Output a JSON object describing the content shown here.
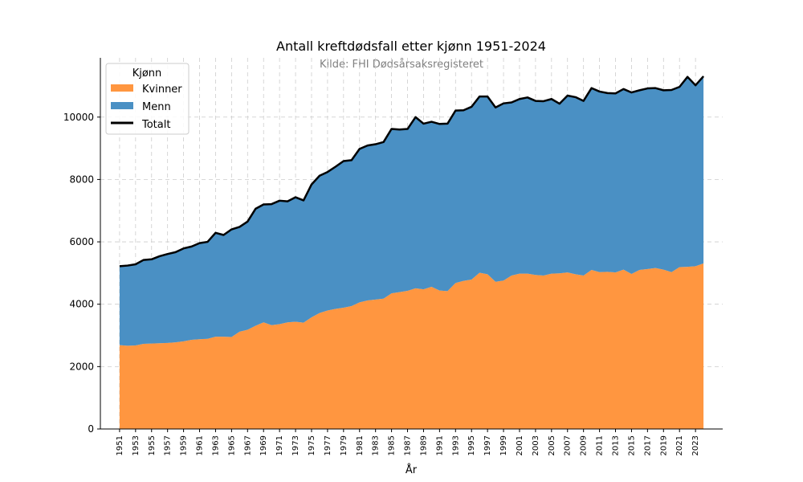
{
  "chart_data": {
    "type": "area",
    "title": "Antall kreftdødsfall etter kjønn 1951-2024",
    "subtitle": "Kilde: FHI Dødsårsaksregisteret",
    "xlabel": "År",
    "ylabel": "",
    "xlim": [
      1948.6,
      2026.4
    ],
    "ylim": [
      0,
      11900
    ],
    "yticks": [
      0,
      2000,
      4000,
      6000,
      8000,
      10000
    ],
    "xticks": [
      1951,
      1953,
      1955,
      1957,
      1959,
      1961,
      1963,
      1965,
      1967,
      1969,
      1971,
      1973,
      1975,
      1977,
      1979,
      1981,
      1983,
      1985,
      1987,
      1989,
      1991,
      1993,
      1995,
      1997,
      1999,
      2001,
      2003,
      2005,
      2007,
      2009,
      2011,
      2013,
      2015,
      2017,
      2019,
      2021,
      2023
    ],
    "grid": true,
    "legend": {
      "title": "Kjønn",
      "position": "top-left"
    },
    "x": [
      1951,
      1952,
      1953,
      1954,
      1955,
      1956,
      1957,
      1958,
      1959,
      1960,
      1961,
      1962,
      1963,
      1964,
      1965,
      1966,
      1967,
      1968,
      1969,
      1970,
      1971,
      1972,
      1973,
      1974,
      1975,
      1976,
      1977,
      1978,
      1979,
      1980,
      1981,
      1982,
      1983,
      1984,
      1985,
      1986,
      1987,
      1988,
      1989,
      1990,
      1991,
      1992,
      1993,
      1994,
      1995,
      1996,
      1997,
      1998,
      1999,
      2000,
      2001,
      2002,
      2003,
      2004,
      2005,
      2006,
      2007,
      2008,
      2009,
      2010,
      2011,
      2012,
      2013,
      2014,
      2015,
      2016,
      2017,
      2018,
      2019,
      2020,
      2021,
      2022,
      2023,
      2024
    ],
    "series": [
      {
        "name": "Kvinner",
        "color": "#ff9640",
        "values": [
          2690,
          2670,
          2680,
          2730,
          2740,
          2750,
          2760,
          2780,
          2810,
          2860,
          2880,
          2890,
          2960,
          2960,
          2950,
          3120,
          3180,
          3310,
          3420,
          3330,
          3360,
          3420,
          3440,
          3410,
          3580,
          3720,
          3800,
          3850,
          3890,
          3940,
          4060,
          4120,
          4150,
          4180,
          4350,
          4390,
          4430,
          4510,
          4480,
          4560,
          4440,
          4420,
          4680,
          4750,
          4790,
          5010,
          4960,
          4720,
          4760,
          4920,
          4980,
          4980,
          4940,
          4920,
          4980,
          4990,
          5020,
          4960,
          4920,
          5100,
          5030,
          5040,
          5020,
          5110,
          4970,
          5100,
          5130,
          5160,
          5110,
          5030,
          5190,
          5200,
          5220,
          5310
        ]
      },
      {
        "name": "Menn",
        "color": "#4a90c4",
        "values": [
          2530,
          2570,
          2600,
          2690,
          2700,
          2790,
          2850,
          2890,
          2980,
          2990,
          3080,
          3110,
          3330,
          3260,
          3450,
          3360,
          3470,
          3750,
          3780,
          3880,
          3960,
          3880,
          3990,
          3920,
          4260,
          4400,
          4440,
          4560,
          4700,
          4680,
          4920,
          4970,
          4980,
          5020,
          5270,
          5210,
          5190,
          5490,
          5310,
          5290,
          5340,
          5370,
          5530,
          5470,
          5540,
          5650,
          5700,
          5590,
          5680,
          5550,
          5600,
          5650,
          5580,
          5590,
          5600,
          5440,
          5670,
          5680,
          5600,
          5830,
          5790,
          5730,
          5740,
          5790,
          5820,
          5760,
          5790,
          5770,
          5750,
          5840,
          5780,
          6090,
          5800,
          6000
        ]
      }
    ],
    "total": {
      "name": "Totalt",
      "color": "#000000",
      "values": [
        5220,
        5240,
        5280,
        5420,
        5440,
        5540,
        5610,
        5670,
        5790,
        5850,
        5960,
        6000,
        6290,
        6220,
        6400,
        6480,
        6650,
        7060,
        7200,
        7210,
        7320,
        7300,
        7430,
        7330,
        7840,
        8120,
        8240,
        8410,
        8590,
        8620,
        8980,
        9090,
        9130,
        9200,
        9620,
        9600,
        9620,
        10000,
        9790,
        9850,
        9780,
        9790,
        10210,
        10220,
        10330,
        10660,
        10660,
        10310,
        10440,
        10470,
        10580,
        10630,
        10520,
        10510,
        10580,
        10430,
        10690,
        10640,
        10520,
        10930,
        10820,
        10770,
        10760,
        10900,
        10790,
        10860,
        10920,
        10930,
        10860,
        10870,
        10970,
        11290,
        11020,
        11310
      ]
    }
  }
}
